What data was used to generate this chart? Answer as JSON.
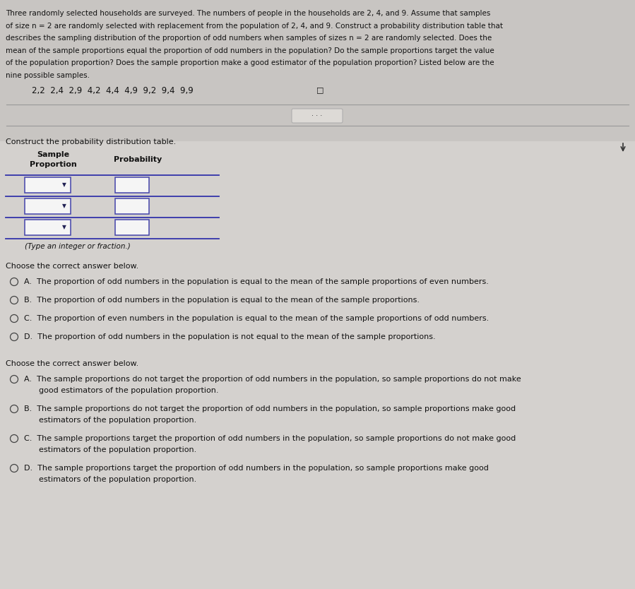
{
  "bg_top": "#c8c5c2",
  "bg_bottom": "#d4d1ce",
  "text_color": "#111111",
  "title_lines": [
    "Three randomly selected households are surveyed. The numbers of people in the households are 2, 4, and 9. Assume that samples",
    "of size n = 2 are randomly selected with replacement from the population of 2, 4, and 9. Construct a probability distribution table that",
    "describes the sampling distribution of the proportion of odd numbers when samples of sizes n = 2 are randomly selected. Does the",
    "mean of the sample proportions equal the proportion of odd numbers in the population? Do the sample proportions target the value",
    "of the population proportion? Does the sample proportion make a good estimator of the population proportion? Listed below are the",
    "nine possible samples."
  ],
  "samples_text": "    2,2  2,4  2,9  4,2  4,4  4,9  9,2  9,4  9,9",
  "square_sym": "□",
  "construct_label": "Construct the probability distribution table.",
  "col1_header_line1": "Sample",
  "col1_header_line2": "Proportion",
  "col2_header": "Probability",
  "table_note": "(Type an integer or fraction.)",
  "choose1_label": "Choose the correct answer below.",
  "opts1": [
    "A.  The proportion of odd numbers in the population is equal to the mean of the sample proportions of even numbers.",
    "B.  The proportion of odd numbers in the population is equal to the mean of the sample proportions.",
    "C.  The proportion of even numbers in the population is equal to the mean of the sample proportions of odd numbers.",
    "D.  The proportion of odd numbers in the population is not equal to the mean of the sample proportions."
  ],
  "choose2_label": "Choose the correct answer below.",
  "opts2": [
    [
      "A.  The sample proportions do not target the proportion of odd numbers in the population, so sample proportions do not make",
      "      good estimators of the population proportion."
    ],
    [
      "B.  The sample proportions do not target the proportion of odd numbers in the population, so sample proportions make good",
      "      estimators of the population proportion."
    ],
    [
      "C.  The sample proportions target the proportion of odd numbers in the population, so sample proportions do not make good",
      "      estimators of the population proportion."
    ],
    [
      "D.  The sample proportions target the proportion of odd numbers in the population, so sample proportions make good",
      "      estimators of the population proportion."
    ]
  ],
  "sep_color": "#999999",
  "circle_color": "#444444",
  "box_fill": "#f5f5f5",
  "box_border": "#4444aa",
  "arrow_color": "#222255",
  "title_fontsize": 7.5,
  "body_fontsize": 8.0,
  "samples_fontsize": 8.5
}
